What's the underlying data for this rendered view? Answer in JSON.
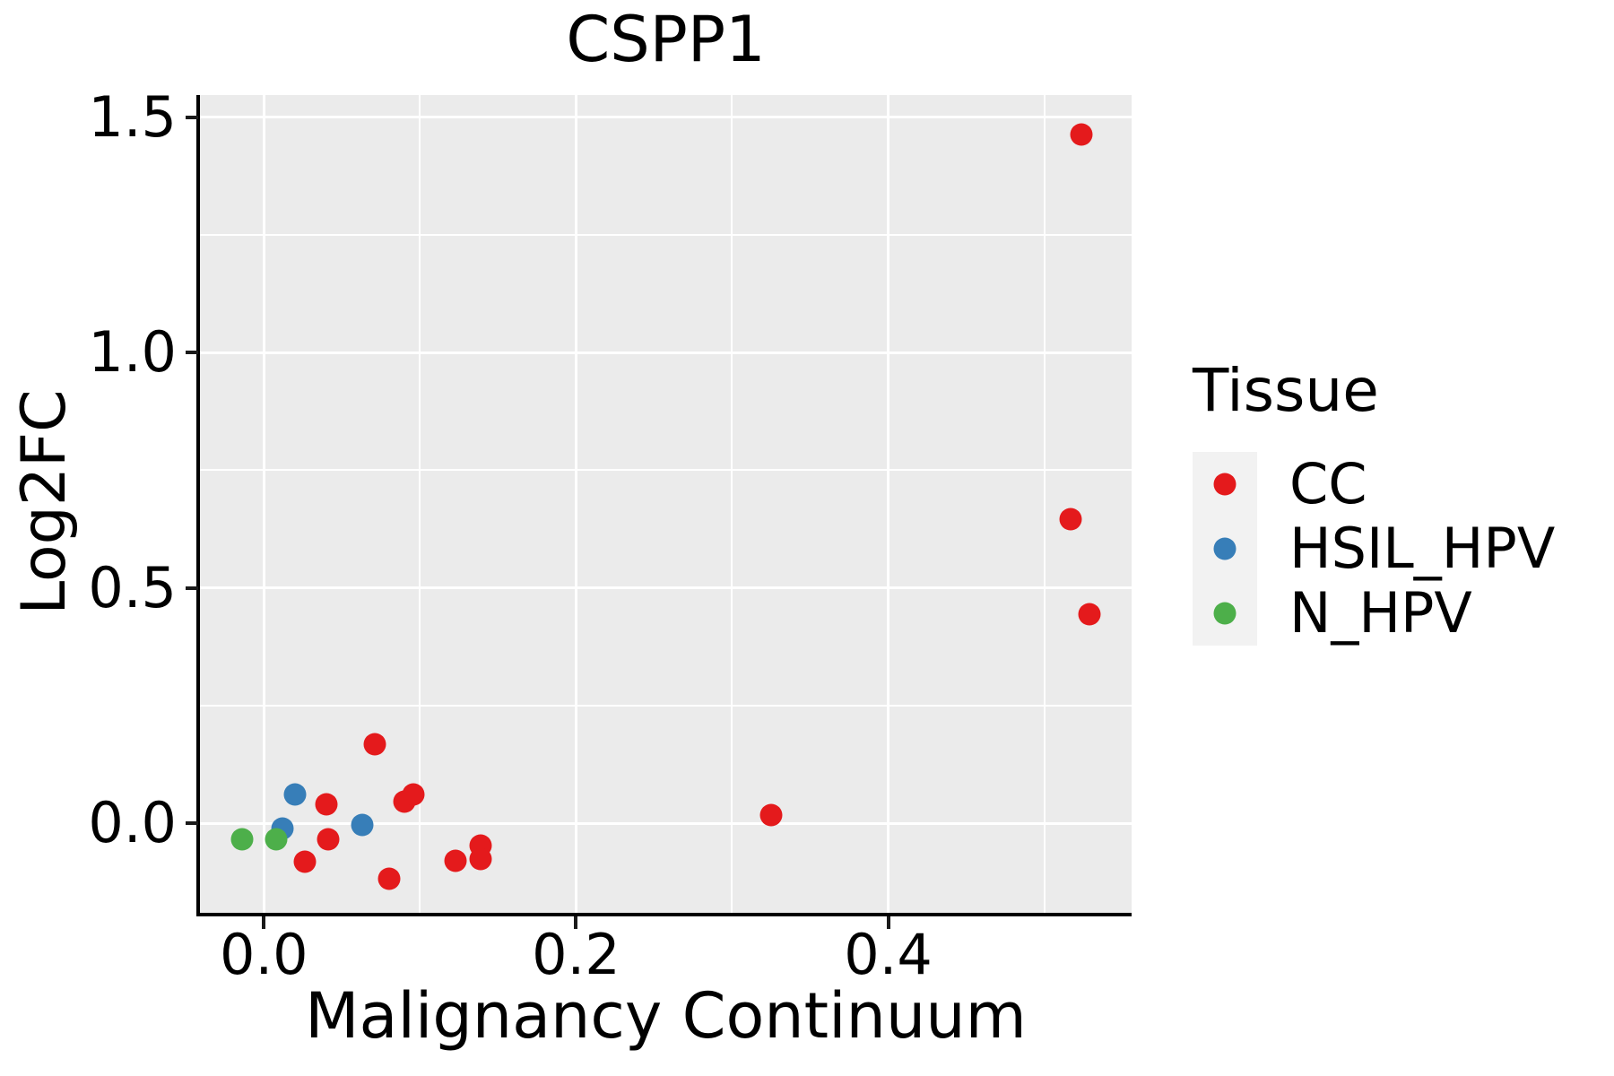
{
  "figure": {
    "title": "CSPP1",
    "xlabel": "Malignancy Continuum",
    "ylabel": "Log2FC"
  },
  "legend": {
    "title": "Tissue",
    "items": [
      {
        "label": "CC",
        "color": "#E41A1C"
      },
      {
        "label": "HSIL_HPV",
        "color": "#377EB8"
      },
      {
        "label": "N_HPV",
        "color": "#4DAF4A"
      }
    ]
  },
  "chart_data": {
    "type": "scatter",
    "title": "CSPP1",
    "xlabel": "Malignancy Continuum",
    "ylabel": "Log2FC",
    "xlim": [
      -0.041,
      0.556
    ],
    "ylim": [
      -0.19,
      1.547
    ],
    "x_ticks": {
      "values": [
        0.0,
        0.2,
        0.4
      ],
      "labels": [
        "0.0",
        "0.2",
        "0.4"
      ],
      "minor": [
        0.1,
        0.3,
        0.5
      ]
    },
    "y_ticks": {
      "values": [
        0.0,
        0.5,
        1.0,
        1.5
      ],
      "labels": [
        "0.0",
        "0.5",
        "1.0",
        "1.5"
      ],
      "minor": [
        0.25,
        0.75,
        1.25
      ]
    },
    "grid": true,
    "panel_bg": "#EBEBEB",
    "grid_color": "#FFFFFF",
    "legend_position": "right",
    "legend_title": "Tissue",
    "series": [
      {
        "name": "CC",
        "color": "#E41A1C",
        "points": [
          [
            0.524,
            1.464
          ],
          [
            0.517,
            0.646
          ],
          [
            0.529,
            0.444
          ],
          [
            0.04,
            0.04
          ],
          [
            0.041,
            -0.034
          ],
          [
            0.026,
            -0.082
          ],
          [
            0.071,
            0.168
          ],
          [
            0.09,
            0.046
          ],
          [
            0.096,
            0.061
          ],
          [
            0.08,
            -0.118
          ],
          [
            0.123,
            -0.08
          ],
          [
            0.139,
            -0.048
          ],
          [
            0.139,
            -0.076
          ],
          [
            0.325,
            0.017
          ]
        ]
      },
      {
        "name": "HSIL_HPV",
        "color": "#377EB8",
        "points": [
          [
            0.012,
            -0.011
          ],
          [
            0.02,
            0.061
          ],
          [
            0.063,
            -0.004
          ]
        ]
      },
      {
        "name": "N_HPV",
        "color": "#4DAF4A",
        "points": [
          [
            -0.014,
            -0.034
          ],
          [
            0.008,
            -0.034
          ]
        ]
      }
    ]
  }
}
